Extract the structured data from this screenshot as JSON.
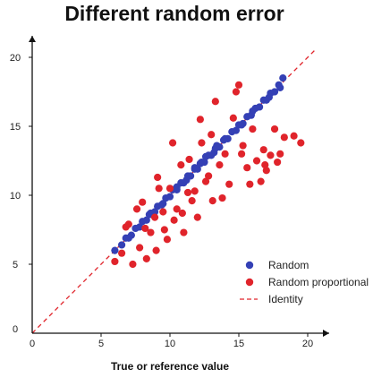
{
  "chart_data": {
    "type": "scatter",
    "title": "Different random error",
    "xlabel": "True or reference value",
    "ylabel": "",
    "xlim": [
      0,
      20
    ],
    "ylim": [
      0,
      20
    ],
    "xticks": [
      0,
      5,
      10,
      15,
      20
    ],
    "yticks": [
      0,
      5,
      10,
      15,
      20
    ],
    "x_tick_labels": [
      "0",
      "5",
      "10",
      "15",
      "20"
    ],
    "y_tick_labels": [
      "0",
      "5",
      "10",
      "15",
      "20"
    ],
    "grid": false,
    "legend_position": "bottom-right",
    "colors": {
      "random": "#3440b5",
      "random_proportional": "#e0242b",
      "identity": "#e0242b",
      "axis": "#111111"
    },
    "series": [
      {
        "name": "Random",
        "marker": "circle",
        "x": [
          6.0,
          6.5,
          6.8,
          7.2,
          7.5,
          7.8,
          8.0,
          8.3,
          8.6,
          8.9,
          9.1,
          9.4,
          9.7,
          10.0,
          10.2,
          10.5,
          10.8,
          11.0,
          11.3,
          11.5,
          11.8,
          12.0,
          12.3,
          12.5,
          12.8,
          13.0,
          13.3,
          13.6,
          13.9,
          14.2,
          14.5,
          14.8,
          15.0,
          15.3,
          15.6,
          15.9,
          16.2,
          16.5,
          16.8,
          17.0,
          17.3,
          17.6,
          17.9,
          18.0,
          18.2,
          7.0,
          8.5,
          9.5,
          10.5,
          11.2,
          12.2,
          13.2,
          14.0,
          15.2,
          16.0,
          17.2,
          11.8,
          12.6,
          13.4
        ],
        "y": [
          6.0,
          6.4,
          6.9,
          7.1,
          7.6,
          7.7,
          8.1,
          8.2,
          8.7,
          8.8,
          9.2,
          9.3,
          9.8,
          9.9,
          10.4,
          10.4,
          10.9,
          10.9,
          11.4,
          11.4,
          11.9,
          11.9,
          12.4,
          12.4,
          12.9,
          12.9,
          13.4,
          13.5,
          14.0,
          14.1,
          14.6,
          14.7,
          15.1,
          15.2,
          15.7,
          15.8,
          16.3,
          16.4,
          16.9,
          16.9,
          17.4,
          17.5,
          18.0,
          17.8,
          18.5,
          6.9,
          8.6,
          9.4,
          10.6,
          11.1,
          12.3,
          13.1,
          14.1,
          15.1,
          16.1,
          17.1,
          12.0,
          12.8,
          13.6
        ]
      },
      {
        "name": "Random proportional",
        "marker": "circle",
        "x": [
          6.0,
          6.5,
          7.0,
          7.3,
          7.8,
          8.0,
          8.3,
          8.6,
          8.9,
          9.0,
          9.2,
          9.5,
          9.8,
          10.0,
          10.3,
          10.5,
          10.8,
          11.0,
          11.3,
          11.6,
          12.0,
          12.3,
          12.6,
          13.0,
          13.3,
          13.6,
          14.0,
          14.3,
          14.6,
          15.0,
          15.3,
          15.6,
          16.0,
          16.3,
          16.6,
          17.0,
          17.3,
          17.6,
          18.0,
          18.3,
          19.0,
          19.5,
          15.2,
          16.8,
          12.8,
          13.8,
          10.2,
          11.8,
          9.6,
          8.2,
          7.6,
          12.2,
          14.8,
          11.4,
          9.1,
          6.8,
          10.9,
          13.1,
          15.8,
          16.9,
          17.8
        ],
        "y": [
          5.2,
          5.8,
          7.9,
          5.0,
          6.2,
          9.5,
          5.4,
          7.3,
          8.4,
          6.0,
          10.5,
          8.8,
          6.8,
          10.5,
          8.2,
          9.0,
          12.2,
          7.3,
          10.2,
          9.6,
          8.4,
          13.8,
          11.0,
          14.4,
          16.8,
          12.2,
          13.0,
          10.8,
          15.6,
          18.0,
          13.6,
          12.0,
          14.8,
          12.5,
          11.0,
          11.8,
          12.9,
          14.8,
          13.0,
          14.2,
          14.3,
          13.8,
          13.0,
          13.3,
          11.4,
          9.8,
          13.8,
          10.3,
          7.5,
          7.6,
          9.0,
          15.5,
          17.5,
          12.6,
          11.3,
          7.7,
          8.7,
          9.6,
          10.8,
          12.2,
          12.4
        ]
      }
    ],
    "reference_line": {
      "name": "Identity",
      "x": [
        0,
        20.5
      ],
      "y": [
        0,
        20.5
      ],
      "style": "dashed"
    },
    "legend": [
      {
        "label": "Random",
        "kind": "marker",
        "color": "#3440b5"
      },
      {
        "label": "Random proportional",
        "kind": "marker",
        "color": "#e0242b"
      },
      {
        "label": "Identity",
        "kind": "dashed-line",
        "color": "#e0242b"
      }
    ]
  }
}
